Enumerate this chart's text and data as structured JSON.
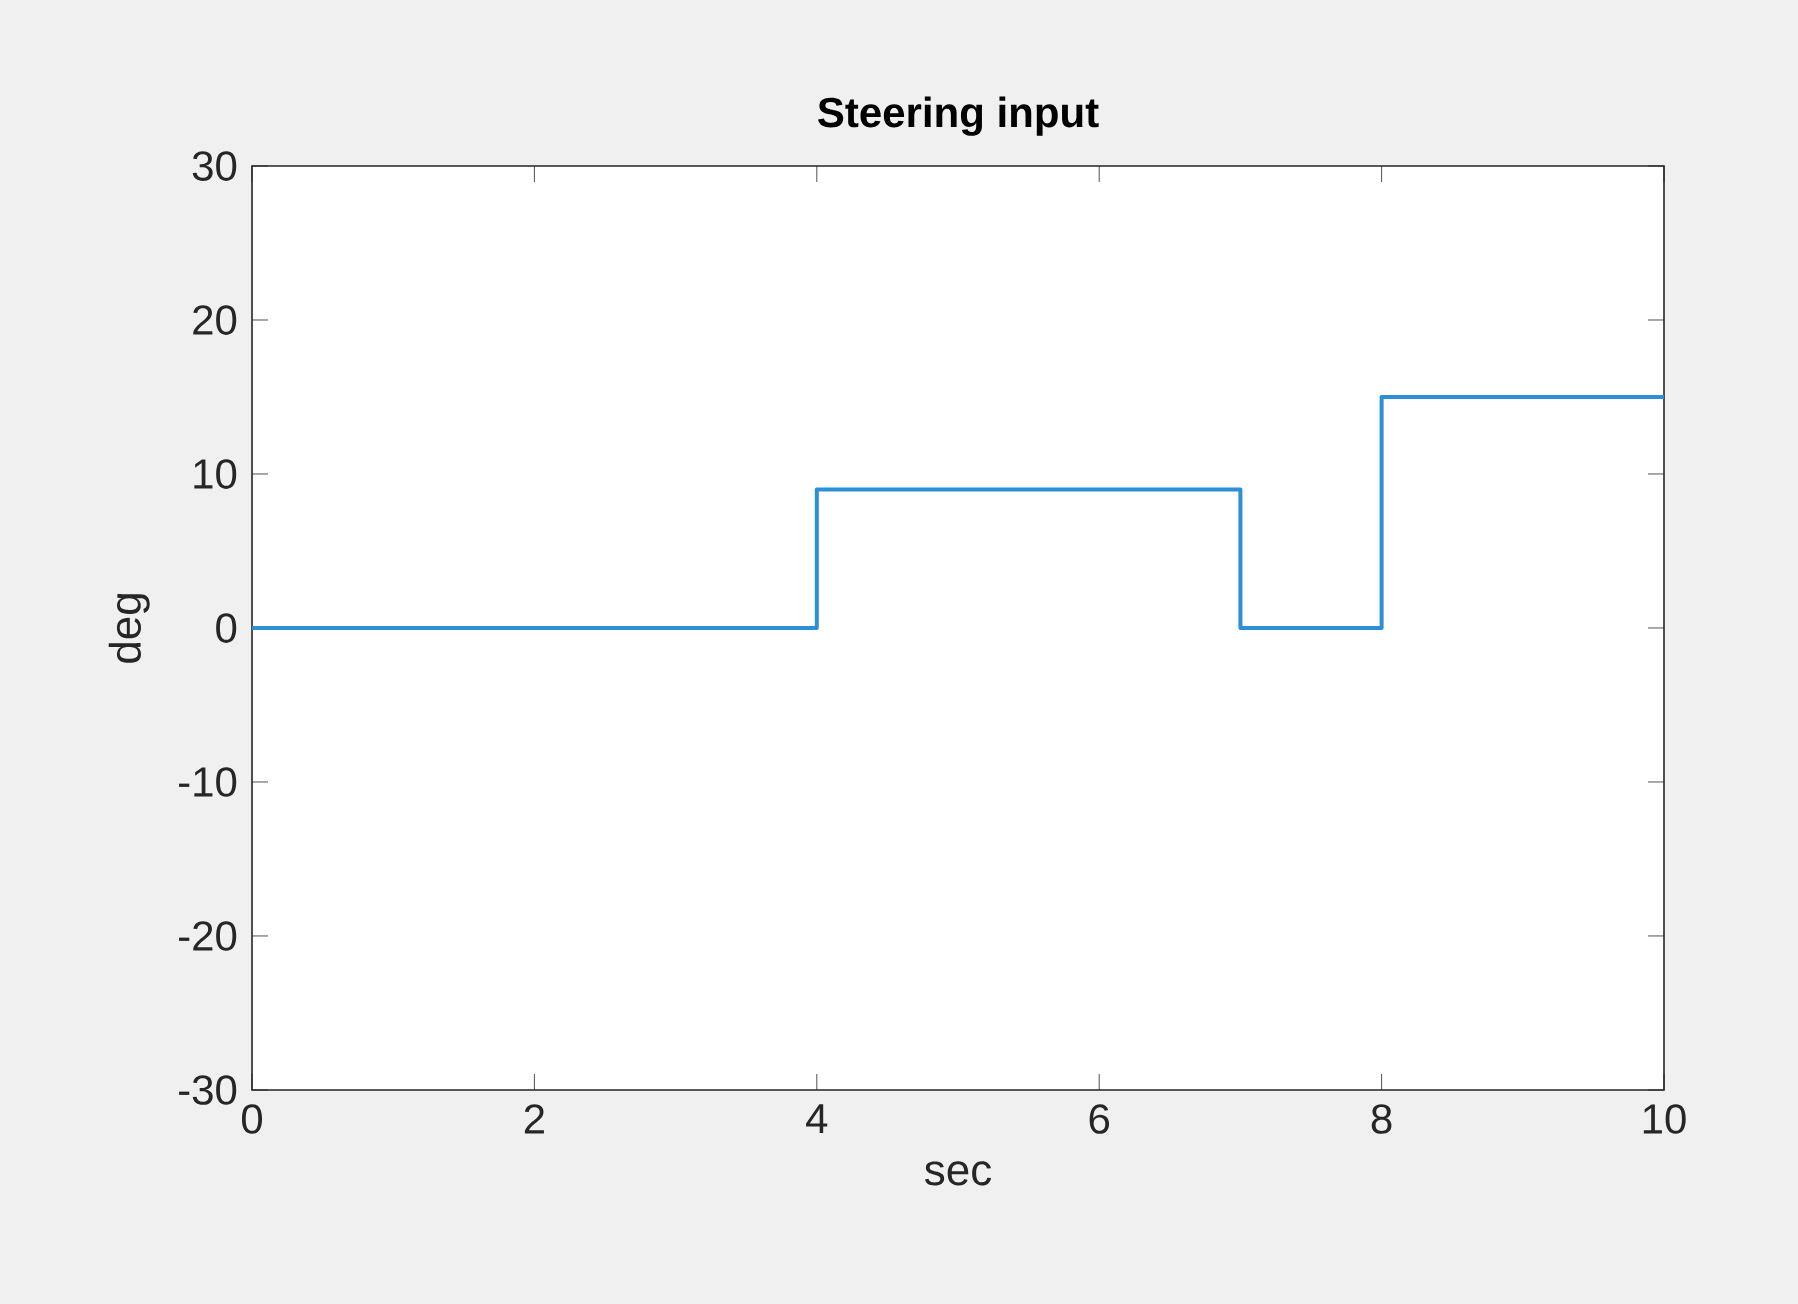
{
  "chart_data": {
    "type": "line",
    "title": "Steering input",
    "xlabel": "sec",
    "ylabel": "deg",
    "x": [
      0,
      4,
      4,
      7,
      7,
      8,
      8,
      10
    ],
    "values": [
      0,
      0,
      9,
      9,
      0,
      0,
      15,
      15
    ],
    "color": "#2d8fd5",
    "xlim": [
      0,
      10
    ],
    "xticks": [
      0,
      2,
      4,
      6,
      8,
      10
    ],
    "ylim": [
      -30,
      30
    ],
    "yticks": [
      -30,
      -20,
      -10,
      0,
      10,
      20,
      30
    ]
  }
}
